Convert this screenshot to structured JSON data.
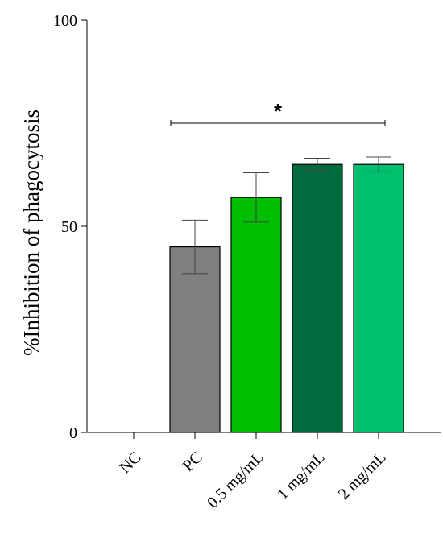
{
  "chart_data": {
    "type": "bar",
    "title": "",
    "xlabel": "",
    "ylabel": "%Inhibition of phagocytosis",
    "ylim": [
      0,
      100
    ],
    "yticks": [
      "0",
      "50",
      "100"
    ],
    "grid": false,
    "legend": "none",
    "categories": [
      "NC",
      "PC",
      "0.5 mg/mL",
      "1 mg/mL",
      "2 mg/mL"
    ],
    "values": [
      0,
      45,
      57,
      65,
      65
    ],
    "errors": [
      0,
      6.5,
      6,
      1.5,
      1.8
    ],
    "colors": [
      "#ffffff",
      "#808080",
      "#00bf00",
      "#006b3c",
      "#00c070"
    ],
    "significance": {
      "label": "*",
      "from": "PC",
      "to": "2 mg/mL",
      "y": 75
    }
  }
}
